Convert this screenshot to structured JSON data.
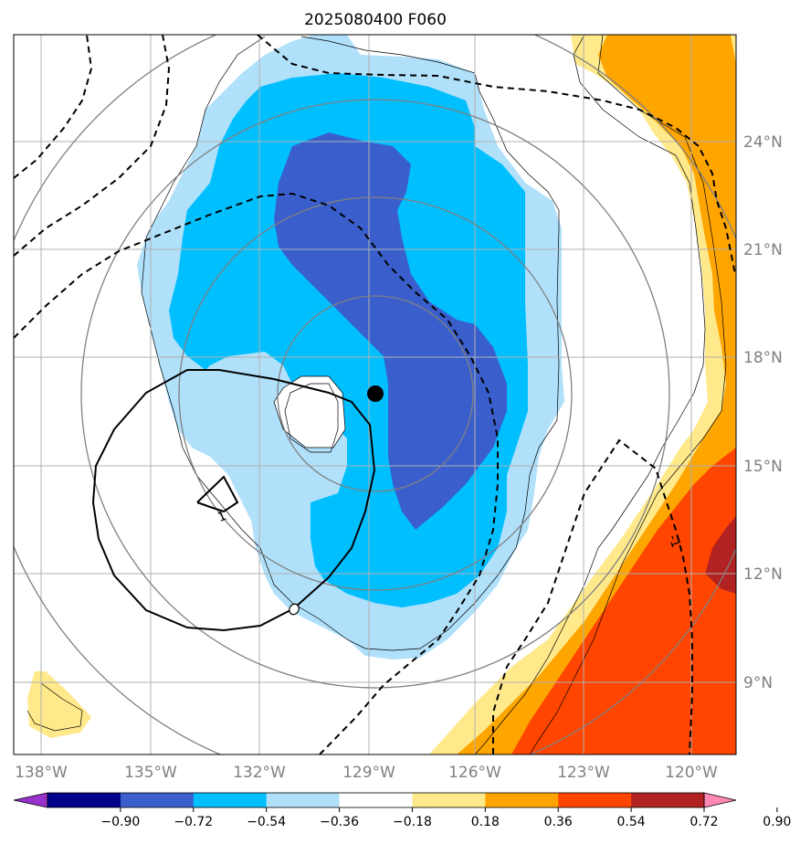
{
  "title": "2025080400 F060",
  "map": {
    "lon_ticks": [
      {
        "value": -138,
        "label": "138°W"
      },
      {
        "value": -135,
        "label": "135°W"
      },
      {
        "value": -132,
        "label": "132°W"
      },
      {
        "value": -129,
        "label": "129°W"
      },
      {
        "value": -126,
        "label": "126°W"
      },
      {
        "value": -123,
        "label": "123°W"
      },
      {
        "value": -120,
        "label": "120°W"
      }
    ],
    "lat_ticks": [
      {
        "value": 9,
        "label": "9°N"
      },
      {
        "value": 12,
        "label": "12°N"
      },
      {
        "value": 15,
        "label": "15°N"
      },
      {
        "value": 18,
        "label": "18°N"
      },
      {
        "value": 21,
        "label": "21°N"
      },
      {
        "value": 24,
        "label": "24°N"
      }
    ],
    "storm_center": {
      "lon": -128.85,
      "lat": 17.0
    },
    "contour_labels": [
      "-1",
      "1"
    ],
    "gridlines": true
  },
  "colorbar": {
    "ticks": [
      "−0.90",
      "−0.72",
      "−0.54",
      "−0.36",
      "−0.18",
      "0.18",
      "0.36",
      "0.54",
      "0.72",
      "0.90"
    ],
    "colors": [
      "#9932cc",
      "#00008b",
      "#3a5fcd",
      "#00bfff",
      "#b0e0fa",
      "#ffffff",
      "#ffe98a",
      "#ffa500",
      "#ff4500",
      "#b22222",
      "#ff88b5"
    ]
  },
  "colors": {
    "lightblue": "#b0e0fa",
    "cyan": "#00bfff",
    "royalblue": "#3a5fcd",
    "yellow": "#ffe98a",
    "orange": "#ffa500",
    "red": "#ff4500",
    "darkred": "#b22222",
    "grid": "#b0b0b0",
    "rings": "#808080",
    "tick_text": "#808080"
  }
}
